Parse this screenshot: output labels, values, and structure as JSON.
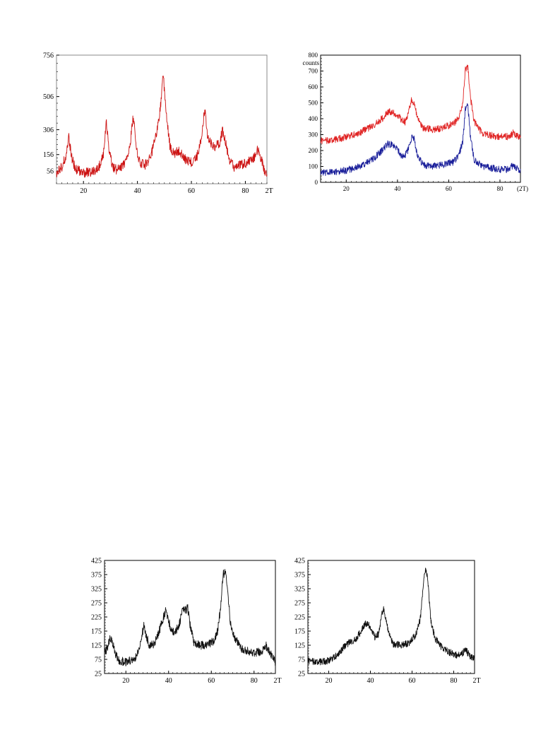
{
  "chart_data": [
    {
      "type": "line",
      "xunit": "2T",
      "xlim": [
        10,
        88
      ],
      "ylim": [
        -20,
        756
      ],
      "xticks": [
        20,
        40,
        60,
        80
      ],
      "yticks": [
        56,
        156,
        306,
        506,
        756
      ],
      "series": [
        {
          "color": "#cc1111",
          "points": [
            [
              10,
              45
            ],
            [
              12,
              80
            ],
            [
              13.5,
              150
            ],
            [
              14.5,
              265
            ],
            [
              15.5,
              150
            ],
            [
              17,
              70
            ],
            [
              20,
              45
            ],
            [
              24,
              55
            ],
            [
              26,
              90
            ],
            [
              27.5,
              170
            ],
            [
              28.5,
              355
            ],
            [
              29.5,
              170
            ],
            [
              31,
              70
            ],
            [
              33,
              65
            ],
            [
              35,
              95
            ],
            [
              37,
              180
            ],
            [
              38.5,
              395
            ],
            [
              39.5,
              190
            ],
            [
              41,
              100
            ],
            [
              43,
              95
            ],
            [
              45,
              150
            ],
            [
              47,
              270
            ],
            [
              48.5,
              430
            ],
            [
              49.5,
              665
            ],
            [
              50.5,
              420
            ],
            [
              52,
              210
            ],
            [
              53.5,
              160
            ],
            [
              55,
              180
            ],
            [
              56,
              165
            ],
            [
              58,
              120
            ],
            [
              60,
              110
            ],
            [
              62,
              140
            ],
            [
              63.5,
              240
            ],
            [
              65,
              430
            ],
            [
              66,
              255
            ],
            [
              67.5,
              220
            ],
            [
              69,
              200
            ],
            [
              70.5,
              230
            ],
            [
              71.5,
              300
            ],
            [
              72.5,
              240
            ],
            [
              74,
              130
            ],
            [
              76,
              80
            ],
            [
              78,
              90
            ],
            [
              81,
              110
            ],
            [
              83,
              130
            ],
            [
              84.5,
              190
            ],
            [
              85.5,
              150
            ],
            [
              87,
              65
            ],
            [
              88,
              40
            ]
          ]
        }
      ]
    },
    {
      "type": "line",
      "ylabel": "counts",
      "xunit": "(2T)",
      "xlim": [
        10,
        88
      ],
      "ylim": [
        0,
        800
      ],
      "xticks": [
        20,
        40,
        60,
        80
      ],
      "yticks": [
        0,
        100,
        200,
        300,
        400,
        500,
        600,
        700,
        800
      ],
      "series": [
        {
          "color": "#e02424",
          "points": [
            [
              10,
              260
            ],
            [
              15,
              265
            ],
            [
              20,
              285
            ],
            [
              25,
              310
            ],
            [
              30,
              350
            ],
            [
              34,
              400
            ],
            [
              36,
              440
            ],
            [
              38,
              445
            ],
            [
              40,
              420
            ],
            [
              42,
              390
            ],
            [
              43,
              380
            ],
            [
              44,
              420
            ],
            [
              45.5,
              520
            ],
            [
              46.5,
              500
            ],
            [
              48,
              390
            ],
            [
              50,
              345
            ],
            [
              54,
              330
            ],
            [
              58,
              345
            ],
            [
              62,
              370
            ],
            [
              64,
              410
            ],
            [
              65.5,
              500
            ],
            [
              66.5,
              710
            ],
            [
              67.5,
              720
            ],
            [
              68.5,
              530
            ],
            [
              70,
              380
            ],
            [
              73,
              310
            ],
            [
              78,
              290
            ],
            [
              82,
              290
            ],
            [
              84,
              285
            ],
            [
              85,
              310
            ],
            [
              86,
              300
            ],
            [
              88,
              275
            ]
          ]
        },
        {
          "color": "#1a1f9a",
          "points": [
            [
              10,
              60
            ],
            [
              15,
              65
            ],
            [
              20,
              75
            ],
            [
              25,
              100
            ],
            [
              30,
              140
            ],
            [
              34,
              200
            ],
            [
              36,
              240
            ],
            [
              38,
              240
            ],
            [
              40,
              210
            ],
            [
              42,
              160
            ],
            [
              43,
              170
            ],
            [
              44,
              200
            ],
            [
              45.5,
              280
            ],
            [
              46.5,
              270
            ],
            [
              48,
              160
            ],
            [
              50,
              110
            ],
            [
              54,
              100
            ],
            [
              58,
              110
            ],
            [
              62,
              130
            ],
            [
              64,
              170
            ],
            [
              65.5,
              260
            ],
            [
              66.5,
              470
            ],
            [
              67.5,
              480
            ],
            [
              68.5,
              280
            ],
            [
              70,
              140
            ],
            [
              73,
              100
            ],
            [
              78,
              85
            ],
            [
              82,
              80
            ],
            [
              84,
              85
            ],
            [
              85,
              110
            ],
            [
              86,
              90
            ],
            [
              88,
              75
            ]
          ]
        }
      ]
    },
    {
      "type": "line",
      "xunit": "2T",
      "xlim": [
        10,
        90
      ],
      "ylim": [
        25,
        425
      ],
      "xticks": [
        20,
        40,
        60,
        80
      ],
      "yticks": [
        25,
        75,
        125,
        175,
        225,
        275,
        325,
        375,
        425
      ],
      "series": [
        {
          "color": "#111111",
          "points": [
            [
              10,
              95
            ],
            [
              11.5,
              120
            ],
            [
              12.5,
              150
            ],
            [
              13.5,
              145
            ],
            [
              15,
              95
            ],
            [
              17,
              70
            ],
            [
              20,
              65
            ],
            [
              24,
              75
            ],
            [
              26,
              105
            ],
            [
              27.5,
              160
            ],
            [
              28.5,
              195
            ],
            [
              29.5,
              160
            ],
            [
              31,
              125
            ],
            [
              33,
              130
            ],
            [
              35,
              160
            ],
            [
              37,
              210
            ],
            [
              38.5,
              245
            ],
            [
              39.5,
              230
            ],
            [
              41,
              180
            ],
            [
              43,
              170
            ],
            [
              45,
              200
            ],
            [
              46.5,
              245
            ],
            [
              48,
              250
            ],
            [
              49,
              255
            ],
            [
              50,
              200
            ],
            [
              52,
              130
            ],
            [
              55,
              125
            ],
            [
              58,
              125
            ],
            [
              61,
              140
            ],
            [
              63,
              175
            ],
            [
              64.5,
              270
            ],
            [
              65.5,
              375
            ],
            [
              66.5,
              385
            ],
            [
              67.5,
              330
            ],
            [
              69,
              200
            ],
            [
              71,
              150
            ],
            [
              74,
              115
            ],
            [
              78,
              100
            ],
            [
              82,
              100
            ],
            [
              84,
              105
            ],
            [
              85.5,
              125
            ],
            [
              86.5,
              110
            ],
            [
              88,
              90
            ],
            [
              90,
              65
            ]
          ]
        }
      ]
    },
    {
      "type": "line",
      "xunit": "2T",
      "xlim": [
        10,
        90
      ],
      "ylim": [
        25,
        425
      ],
      "xticks": [
        20,
        40,
        60,
        80
      ],
      "yticks": [
        25,
        75,
        125,
        175,
        225,
        275,
        325,
        375,
        425
      ],
      "series": [
        {
          "color": "#111111",
          "points": [
            [
              10,
              70
            ],
            [
              15,
              65
            ],
            [
              20,
              70
            ],
            [
              24,
              90
            ],
            [
              27,
              115
            ],
            [
              30,
              135
            ],
            [
              33,
              145
            ],
            [
              35,
              170
            ],
            [
              37,
              195
            ],
            [
              38.5,
              205
            ],
            [
              40,
              190
            ],
            [
              42,
              155
            ],
            [
              44,
              165
            ],
            [
              45.5,
              235
            ],
            [
              46.5,
              255
            ],
            [
              47.5,
              215
            ],
            [
              49,
              160
            ],
            [
              51,
              130
            ],
            [
              55,
              125
            ],
            [
              59,
              135
            ],
            [
              62,
              165
            ],
            [
              64,
              220
            ],
            [
              65.5,
              350
            ],
            [
              66.5,
              400
            ],
            [
              67.5,
              360
            ],
            [
              69,
              210
            ],
            [
              71,
              150
            ],
            [
              74,
              120
            ],
            [
              78,
              100
            ],
            [
              82,
              90
            ],
            [
              84,
              95
            ],
            [
              85.5,
              110
            ],
            [
              86.5,
              100
            ],
            [
              88,
              85
            ],
            [
              90,
              75
            ]
          ]
        }
      ]
    }
  ]
}
